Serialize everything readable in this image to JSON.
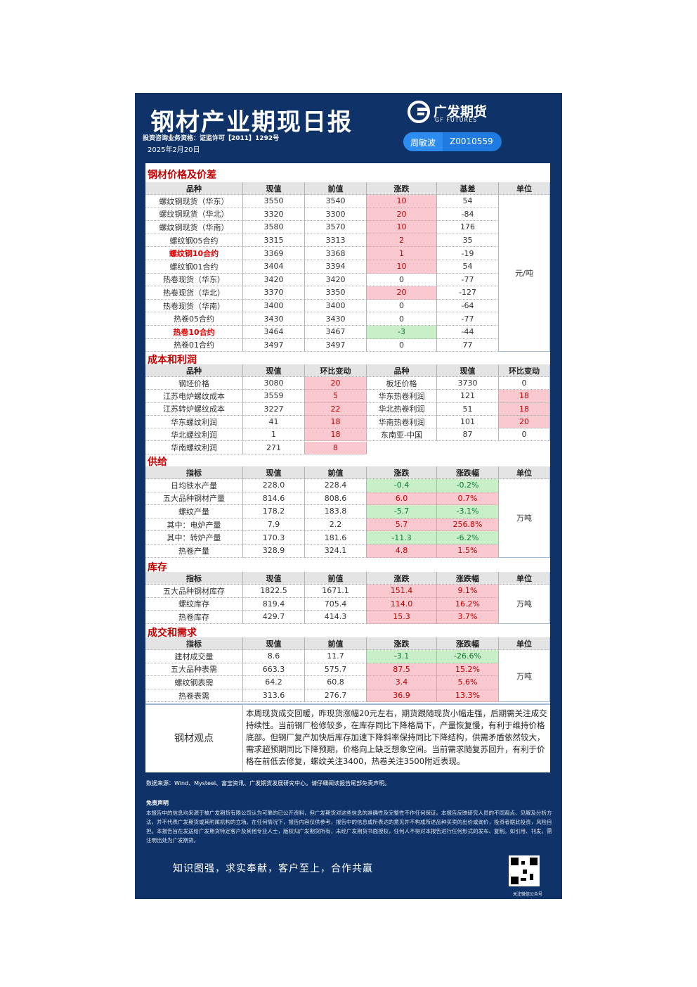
{
  "header": {
    "title": "钢材产业期现日报",
    "logo_cn": "广发期货",
    "logo_en": "GF FUTURES",
    "license": "投资咨询业务资格：证监许可【2011】1292号",
    "date": "2025年2月20日",
    "analyst": "周敏波",
    "analyst_id": "Z0010559"
  },
  "sections": [
    {
      "title": "钢材价格及价差",
      "columns": [
        "品种",
        "现值",
        "前值",
        "涨跌",
        "基差",
        "单位"
      ],
      "unit": "元/吨",
      "rows": [
        [
          "螺纹钢现货（华东）",
          "3550",
          "3540",
          "10",
          "54"
        ],
        [
          "螺纹钢现货（华北）",
          "3320",
          "3300",
          "20",
          "-84"
        ],
        [
          "螺纹钢现货（华南）",
          "3580",
          "3570",
          "10",
          "176"
        ],
        [
          "螺纹钢05合约",
          "3315",
          "3313",
          "2",
          "35"
        ],
        [
          "螺纹钢10合约",
          "3369",
          "3368",
          "1",
          "-19"
        ],
        [
          "螺纹钢01合约",
          "3404",
          "3394",
          "10",
          "54"
        ],
        [
          "热卷现货（华东）",
          "3420",
          "3420",
          "0",
          "-77"
        ],
        [
          "热卷现货（华北）",
          "3370",
          "3350",
          "20",
          "-127"
        ],
        [
          "热卷现货（华南）",
          "3400",
          "3400",
          "0",
          "-64"
        ],
        [
          "热卷05合约",
          "3430",
          "3430",
          "0",
          "-77"
        ],
        [
          "热卷10合约",
          "3464",
          "3467",
          "-3",
          "-44"
        ],
        [
          "热卷01合约",
          "3497",
          "3497",
          "0",
          "77"
        ]
      ]
    },
    {
      "title": "成本和利润",
      "columns": [
        "品种",
        "现值",
        "环比变动",
        "品种",
        "现值",
        "环比变动"
      ],
      "rows": [
        [
          "钢坯价格",
          "3080",
          "20",
          "板坯价格",
          "3730",
          "0"
        ],
        [
          "江苏电炉螺纹成本",
          "3559",
          "5",
          "华东热卷利润",
          "121",
          "18"
        ],
        [
          "江苏转炉螺纹成本",
          "3227",
          "22",
          "华北热卷利润",
          "51",
          "18"
        ],
        [
          "华东螺纹利润",
          "41",
          "18",
          "华南热卷利润",
          "101",
          "20"
        ],
        [
          "华北螺纹利润",
          "1",
          "18",
          "东南亚-中国",
          "87",
          "0"
        ],
        [
          "华南螺纹利润",
          "271",
          "8"
        ]
      ]
    },
    {
      "title": "供给",
      "columns": [
        "指标",
        "现值",
        "前值",
        "涨跌",
        "涨跌幅",
        "单位"
      ],
      "unit": "万吨",
      "rows": [
        [
          "日均铁水产量",
          "228.0",
          "228.4",
          "-0.4",
          "-0.2%"
        ],
        [
          "五大品种钢材产量",
          "814.6",
          "808.6",
          "6.0",
          "0.7%"
        ],
        [
          "螺纹产量",
          "178.2",
          "183.8",
          "-5.7",
          "-3.1%"
        ],
        [
          "其中：电炉产量",
          "7.9",
          "2.2",
          "5.7",
          "256.8%"
        ],
        [
          "其中：转炉产量",
          "170.3",
          "181.6",
          "-11.3",
          "-6.2%"
        ],
        [
          "热卷产量",
          "328.9",
          "324.1",
          "4.8",
          "1.5%"
        ]
      ]
    },
    {
      "title": "库存",
      "columns": [
        "指标",
        "现值",
        "前值",
        "涨跌",
        "涨跌幅",
        "单位"
      ],
      "unit": "万吨",
      "rows": [
        [
          "五大品种钢材库存",
          "1822.5",
          "1671.1",
          "151.4",
          "9.1%"
        ],
        [
          "螺纹库存",
          "819.4",
          "705.4",
          "114.0",
          "16.2%"
        ],
        [
          "热卷库存",
          "429.7",
          "414.3",
          "15.3",
          "3.7%"
        ]
      ]
    },
    {
      "title": "成交和需求",
      "columns": [
        "指标",
        "现值",
        "前值",
        "涨跌",
        "涨跌幅",
        "单位"
      ],
      "unit": "万吨",
      "rows": [
        [
          "建材成交量",
          "8.6",
          "11.7",
          "-3.1",
          "-26.6%"
        ],
        [
          "五大品种表需",
          "663.3",
          "575.7",
          "87.5",
          "15.2%"
        ],
        [
          "螺纹钢表需",
          "64.2",
          "60.8",
          "3.4",
          "5.6%"
        ],
        [
          "热卷表需",
          "313.6",
          "276.7",
          "36.9",
          "13.3%"
        ]
      ]
    }
  ],
  "viewpoint": {
    "label": "钢材观点",
    "text": "本周现货成交回暖，昨现货涨幅20元左右，期货跟随现货小幅走强，后期需关注成交持续性。当前钢厂检修较多，在库存同比下降格局下，产量恢复慢，有利于维持价格底部。但钢厂复产加快后库存加速下降斜率保持同比下降结构，供需矛盾依然较大，需求超预期同比下降预期，价格向上缺乏想象空间。当前需求随复苏回升，有利于价格在前低去修复，螺纹关注3400，热卷关注3500附近表现。"
  },
  "footer": {
    "source": "数据来源：Wind、Mysteel、富宝资讯、广发期货发展研究中心。请仔细阅读报告尾部免责声明。",
    "disclaimer_title": "免责声明",
    "disclaimer": "本报告中的信息均来源于被广发期货有限公司认为可靠的已公开资料，但广发期货对这些信息的准确性及完整性不作任何保证。本报告反映研究人员的不同观点、见解及分析方法，并不代表广发期货或其附属机构的立场。在任何情况下，报告内容仅供参考，报告中的信息或所表达的意见并不构成所述品种买卖的出价或询价，投资者据此投资，风险自担。本报告旨在发送给广发期货特定客户及其他专业人士，版权归广发期货所有，未经广发期货书面授权，任何人不得对本报告进行任何形式的发布、复制。如引用、刊发，需注明出处为广发期货。",
    "slogan": "知识图强，求实奉献，客户至上，合作共赢",
    "qr_caption": "关注微信公众号"
  }
}
